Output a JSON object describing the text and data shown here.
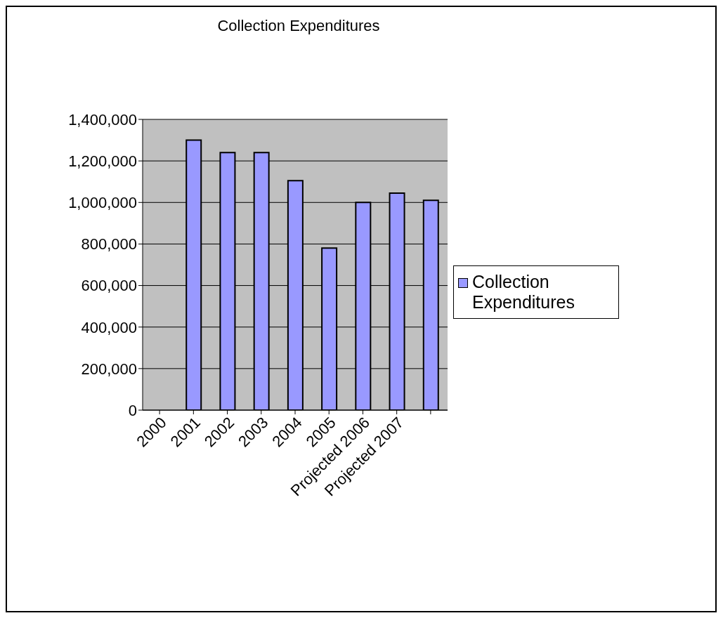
{
  "chart_data": {
    "type": "bar",
    "title": "Collection Expenditures",
    "categories": [
      "2000",
      "2001",
      "2002",
      "2003",
      "2004",
      "2005",
      "Projected 2006",
      "Projected 2007",
      null
    ],
    "series": [
      {
        "name": "Collection Expenditures",
        "color": "#9999ff",
        "values": [
          null,
          1300000,
          1240000,
          1240000,
          1105000,
          780000,
          1000000,
          1045000,
          1010000
        ]
      }
    ],
    "ylim": [
      0,
      1400000
    ],
    "yticks": [
      {
        "value": 0,
        "label": "0"
      },
      {
        "value": 200000,
        "label": "200,000"
      },
      {
        "value": 400000,
        "label": "400,000"
      },
      {
        "value": 600000,
        "label": "600,000"
      },
      {
        "value": 800000,
        "label": "800,000"
      },
      {
        "value": 1000000,
        "label": "1,000,000"
      },
      {
        "value": 1200000,
        "label": "1,200,000"
      },
      {
        "value": 1400000,
        "label": "1,400,000"
      }
    ],
    "grid": "y",
    "legend": "right"
  }
}
